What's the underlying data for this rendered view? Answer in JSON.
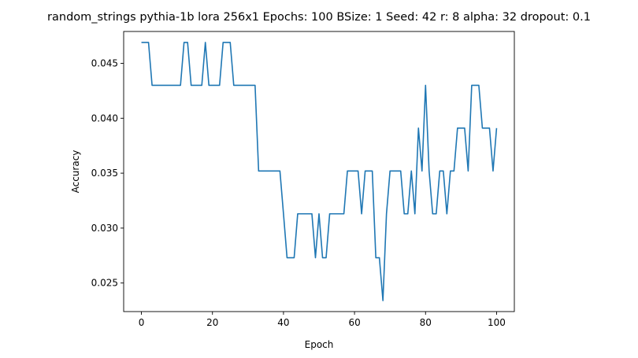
{
  "chart_data": {
    "type": "line",
    "title": "random_strings pythia-1b lora 256x1 Epochs: 100 BSize: 1 Seed: 42 r: 8 alpha: 32 dropout: 0.1",
    "xlabel": "Epoch",
    "ylabel": "Accuracy",
    "xlim": [
      -5,
      105
    ],
    "ylim": [
      0.0224,
      0.0479
    ],
    "xticks": [
      0,
      20,
      40,
      60,
      80,
      100
    ],
    "yticks": [
      0.025,
      0.03,
      0.035,
      0.04,
      0.045
    ],
    "xtick_labels": [
      "0",
      "20",
      "40",
      "60",
      "80",
      "100"
    ],
    "ytick_labels": [
      "0.025",
      "0.030",
      "0.035",
      "0.040",
      "0.045"
    ],
    "grid": false,
    "line_color": "#1f77b4",
    "series": [
      {
        "x": [
          0,
          1,
          2,
          3,
          4,
          5,
          6,
          7,
          8,
          9,
          10,
          11,
          12,
          13,
          14,
          15,
          16,
          17,
          18,
          19,
          20,
          21,
          22,
          23,
          24,
          25,
          26,
          27,
          28,
          29,
          30,
          31,
          32,
          33,
          34,
          35,
          36,
          37,
          38,
          39,
          40,
          41,
          42,
          43,
          44,
          45,
          46,
          47,
          48,
          49,
          50,
          51,
          52,
          53,
          54,
          55,
          56,
          57,
          58,
          59,
          60,
          61,
          62,
          63,
          64,
          65,
          66,
          67,
          68,
          69,
          70,
          71,
          72,
          73,
          74,
          75,
          76,
          77,
          78,
          79,
          80,
          81,
          82,
          83,
          84,
          85,
          86,
          87,
          88,
          89,
          90,
          91,
          92,
          93,
          94,
          95,
          96,
          97,
          98,
          99,
          100
        ],
        "values": [
          0.0469,
          0.0469,
          0.0469,
          0.043,
          0.043,
          0.043,
          0.043,
          0.043,
          0.043,
          0.043,
          0.043,
          0.043,
          0.0469,
          0.0469,
          0.043,
          0.043,
          0.043,
          0.043,
          0.0469,
          0.043,
          0.043,
          0.043,
          0.043,
          0.0469,
          0.0469,
          0.0469,
          0.043,
          0.043,
          0.043,
          0.043,
          0.043,
          0.043,
          0.043,
          0.0352,
          0.0352,
          0.0352,
          0.0352,
          0.0352,
          0.0352,
          0.0352,
          0.0313,
          0.0273,
          0.0273,
          0.0273,
          0.0313,
          0.0313,
          0.0313,
          0.0313,
          0.0313,
          0.0273,
          0.0313,
          0.0273,
          0.0273,
          0.0313,
          0.0313,
          0.0313,
          0.0313,
          0.0313,
          0.0352,
          0.0352,
          0.0352,
          0.0352,
          0.0313,
          0.0352,
          0.0352,
          0.0352,
          0.0273,
          0.0273,
          0.0234,
          0.0313,
          0.0352,
          0.0352,
          0.0352,
          0.0352,
          0.0313,
          0.0313,
          0.0352,
          0.0313,
          0.0391,
          0.0352,
          0.043,
          0.0352,
          0.0313,
          0.0313,
          0.0352,
          0.0352,
          0.0313,
          0.0352,
          0.0352,
          0.0391,
          0.0391,
          0.0391,
          0.0352,
          0.043,
          0.043,
          0.043,
          0.0391,
          0.0391,
          0.0391,
          0.0352,
          0.0391
        ]
      }
    ]
  }
}
